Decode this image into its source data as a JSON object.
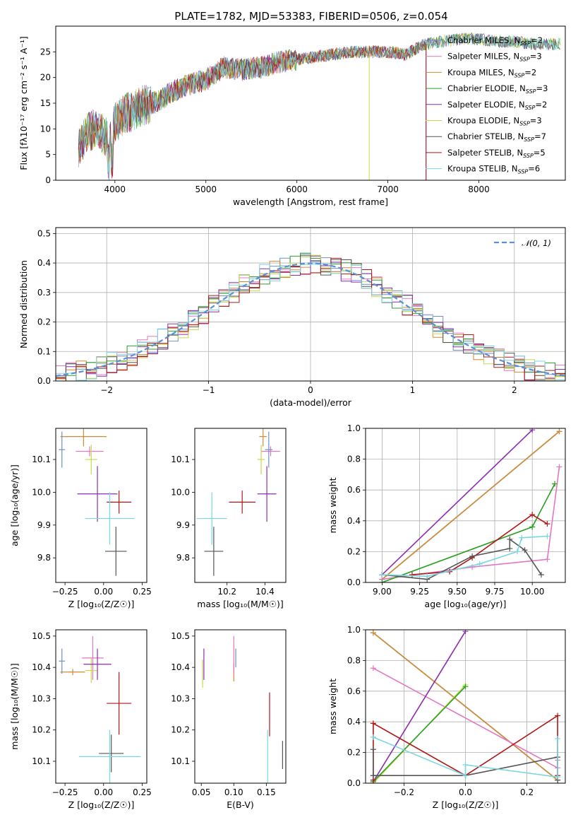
{
  "title": "PLATE=1782, MJD=53383, FIBERID=0506, z=0.054",
  "colors": {
    "Chabrier MILES": "#6f8fc8",
    "Salpeter MILES": "#e377c2",
    "Kroupa MILES": "#d08a30",
    "Chabrier ELODIE": "#2ca02c",
    "Salpeter ELODIE": "#8e2db0",
    "Kroupa ELODIE": "#c8d84a",
    "Chabrier STELIB": "#555555",
    "Salpeter STELIB": "#b01818",
    "Kroupa STELIB": "#7ad6e0",
    "gauss": "#5b8fd6"
  },
  "legend_spectrum": [
    {
      "name": "Chabrier MILES",
      "n": "2"
    },
    {
      "name": "Salpeter MILES",
      "n": "3"
    },
    {
      "name": "Kroupa MILES",
      "n": "2"
    },
    {
      "name": "Chabrier ELODIE",
      "n": "3"
    },
    {
      "name": "Salpeter ELODIE",
      "n": "2"
    },
    {
      "name": "Kroupa ELODIE",
      "n": "3"
    },
    {
      "name": "Chabrier STELIB",
      "n": "7"
    },
    {
      "name": "Salpeter STELIB",
      "n": "5"
    },
    {
      "name": "Kroupa STELIB",
      "n": "6"
    }
  ],
  "chart_data": [
    {
      "id": "spectrum",
      "type": "line",
      "xlabel": "wavelength [Angstrom, rest frame]",
      "ylabel": "Flux [fλ10⁻¹⁷ erg cm⁻² s⁻¹ A⁻¹]",
      "xlim": [
        3350,
        8950
      ],
      "ylim": [
        0,
        30
      ],
      "xticks": [
        "4000",
        "5000",
        "6000",
        "7000",
        "8000"
      ],
      "yticks": [
        "0",
        "5",
        "10",
        "15",
        "20",
        "25"
      ],
      "x": [
        3600,
        3700,
        3800,
        3900,
        3950,
        4000,
        4100,
        4200,
        4300,
        4400,
        4500,
        4600,
        4800,
        5000,
        5200,
        5400,
        5600,
        5800,
        6000,
        6200,
        6400,
        6600,
        6800,
        7000,
        7200,
        7400,
        7600,
        7800,
        8000,
        8200,
        8400,
        8600,
        8800
      ],
      "y": [
        6.5,
        9.5,
        10,
        8.5,
        8,
        11,
        13,
        13.5,
        14.5,
        15,
        15.5,
        17,
        18.5,
        19.5,
        22,
        21.5,
        22,
        23,
        23.5,
        24,
        24.5,
        25,
        25,
        25,
        24.5,
        26.5,
        27,
        27.5,
        27.5,
        27,
        27,
        26.5,
        26.5
      ],
      "series": [
        "Chabrier MILES",
        "Salpeter MILES",
        "Kroupa MILES",
        "Chabrier ELODIE",
        "Salpeter ELODIE",
        "Kroupa ELODIE",
        "Chabrier STELIB",
        "Salpeter STELIB",
        "Kroupa STELIB"
      ],
      "legend": "top-right"
    },
    {
      "id": "residuals",
      "type": "line",
      "xlabel": "(data-model)/error",
      "ylabel": "Normed distribution",
      "xlim": [
        -2.5,
        2.5
      ],
      "ylim": [
        0,
        0.52
      ],
      "xticks": [
        "−2",
        "−1",
        "0",
        "1",
        "2"
      ],
      "yticks": [
        "0.0",
        "0.1",
        "0.2",
        "0.3",
        "0.4",
        "0.5"
      ],
      "legend_label": "𝒩(0, 1)",
      "legend": "top-right",
      "grid": true,
      "hist_edges": [
        -2.5,
        -2.4,
        -2.3,
        -2.2,
        -2.1,
        -2.0,
        -1.9,
        -1.8,
        -1.7,
        -1.6,
        -1.5,
        -1.4,
        -1.3,
        -1.2,
        -1.1,
        -1.0,
        -0.9,
        -0.8,
        -0.7,
        -0.6,
        -0.5,
        -0.4,
        -0.3,
        -0.2,
        -0.1,
        0.0,
        0.1,
        0.2,
        0.3,
        0.4,
        0.5,
        0.6,
        0.7,
        0.8,
        0.9,
        1.0,
        1.1,
        1.2,
        1.3,
        1.4,
        1.5,
        1.6,
        1.7,
        1.8,
        1.9,
        2.0,
        2.1,
        2.2,
        2.3,
        2.4,
        2.5
      ]
    },
    {
      "id": "age-vs-Z",
      "type": "scatter",
      "xlabel": "Z [log₁₀(Z/Z☉)]",
      "ylabel": "age  [log₁₀(age/yr)]",
      "xlim": [
        -0.31,
        0.28
      ],
      "ylim": [
        9.725,
        10.195
      ],
      "xticks": [
        "−0.25",
        "0.00",
        "0.25"
      ],
      "yticks": [
        "9.8",
        "9.9",
        "10.0",
        "10.1"
      ],
      "points": [
        {
          "series": "Kroupa MILES",
          "x": -0.13,
          "xerr": 0.15,
          "y": 10.17,
          "yerr": 0.03
        },
        {
          "series": "Salpeter MILES",
          "x": -0.09,
          "xerr": 0.09,
          "y": 10.125,
          "yerr": 0.015
        },
        {
          "series": "Chabrier MILES",
          "x": -0.27,
          "xerr": 0.02,
          "y": 10.13,
          "yerr": 0.055
        },
        {
          "series": "Kroupa ELODIE",
          "x": -0.08,
          "xerr": 0.04,
          "y": 10.1,
          "yerr": 0.045
        },
        {
          "series": "Salpeter ELODIE",
          "x": -0.04,
          "xerr": 0.13,
          "y": 9.995,
          "yerr": 0.085
        },
        {
          "series": "Salpeter STELIB",
          "x": 0.1,
          "xerr": 0.08,
          "y": 9.97,
          "yerr": 0.035
        },
        {
          "series": "Kroupa STELIB",
          "x": 0.04,
          "xerr": 0.16,
          "y": 9.92,
          "yerr": 0.08
        },
        {
          "series": "Chabrier STELIB",
          "x": 0.08,
          "xerr": 0.07,
          "y": 9.82,
          "yerr": 0.075
        }
      ]
    },
    {
      "id": "age-vs-mass",
      "type": "scatter",
      "xlabel": "mass [log₁₀(M/M☉)]",
      "ylabel": "",
      "xlim": [
        10.03,
        10.51
      ],
      "ylim": [
        9.725,
        10.195
      ],
      "xticks": [
        "10.2",
        "10.4"
      ],
      "yticks": [
        "9.8",
        "9.9",
        "10.0",
        "10.1"
      ],
      "points": [
        {
          "series": "Kroupa MILES",
          "x": 10.39,
          "xerr": 0.02,
          "y": 10.17,
          "yerr": 0.03
        },
        {
          "series": "Salpeter MILES",
          "x": 10.43,
          "xerr": 0.05,
          "y": 10.125,
          "yerr": 0.015
        },
        {
          "series": "Chabrier MILES",
          "x": 10.42,
          "xerr": 0.02,
          "y": 10.13,
          "yerr": 0.055
        },
        {
          "series": "Kroupa ELODIE",
          "x": 10.38,
          "xerr": 0.02,
          "y": 10.1,
          "yerr": 0.045
        },
        {
          "series": "Salpeter ELODIE",
          "x": 10.41,
          "xerr": 0.05,
          "y": 9.995,
          "yerr": 0.085
        },
        {
          "series": "Salpeter STELIB",
          "x": 10.28,
          "xerr": 0.07,
          "y": 9.97,
          "yerr": 0.035
        },
        {
          "series": "Kroupa STELIB",
          "x": 10.12,
          "xerr": 0.08,
          "y": 9.92,
          "yerr": 0.08
        },
        {
          "series": "Chabrier STELIB",
          "x": 10.13,
          "xerr": 0.05,
          "y": 9.82,
          "yerr": 0.075
        }
      ]
    },
    {
      "id": "weight-vs-age",
      "type": "line",
      "xlabel": "age  [log₁₀(age/yr)]",
      "ylabel": "mass weight",
      "xlim": [
        8.89,
        10.22
      ],
      "ylim": [
        0,
        1
      ],
      "xticks": [
        "9.00",
        "9.25",
        "9.50",
        "9.75",
        "10.00"
      ],
      "yticks": [
        "0.0",
        "0.2",
        "0.4",
        "0.6",
        "0.8",
        "1.0"
      ],
      "grid": true,
      "series": [
        {
          "name": "Salpeter ELODIE",
          "x": [
            9.0,
            10.0
          ],
          "y": [
            0.05,
            0.99
          ]
        },
        {
          "name": "Chabrier MILES",
          "x": [
            9.0,
            10.18
          ],
          "y": [
            0.02,
            0.98
          ]
        },
        {
          "name": "Kroupa MILES",
          "x": [
            9.0,
            10.18
          ],
          "y": [
            0.02,
            0.98
          ]
        },
        {
          "name": "Salpeter MILES",
          "x": [
            9.0,
            9.6,
            10.1,
            10.18
          ],
          "y": [
            0.02,
            0.1,
            0.15,
            0.75
          ]
        },
        {
          "name": "Kroupa ELODIE",
          "x": [
            9.0,
            10.0,
            10.15
          ],
          "y": [
            0.0,
            0.36,
            0.64
          ]
        },
        {
          "name": "Chabrier ELODIE",
          "x": [
            9.0,
            10.0,
            10.15
          ],
          "y": [
            0.0,
            0.36,
            0.64
          ]
        },
        {
          "name": "Salpeter STELIB",
          "x": [
            9.2,
            9.45,
            9.6,
            10.0,
            10.1
          ],
          "y": [
            0.05,
            0.07,
            0.16,
            0.44,
            0.38
          ]
        },
        {
          "name": "Chabrier STELIB",
          "x": [
            9.0,
            9.3,
            9.6,
            9.85,
            9.85,
            9.95,
            10.06
          ],
          "y": [
            0.05,
            0.02,
            0.17,
            0.22,
            0.28,
            0.21,
            0.05
          ]
        },
        {
          "name": "Kroupa STELIB",
          "x": [
            9.0,
            9.3,
            9.65,
            9.9,
            9.93,
            10.1
          ],
          "y": [
            0.05,
            0.04,
            0.12,
            0.2,
            0.29,
            0.3
          ]
        }
      ]
    },
    {
      "id": "mass-vs-Z",
      "type": "scatter",
      "xlabel": "Z [log₁₀(Z/Z☉)]",
      "ylabel": "mass [log₁₀(M/M☉)]",
      "xlim": [
        -0.31,
        0.28
      ],
      "ylim": [
        10.03,
        10.52
      ],
      "xticks": [
        "−0.25",
        "0.00",
        "0.25"
      ],
      "yticks": [
        "10.1",
        "10.2",
        "10.3",
        "10.4",
        "10.5"
      ],
      "points": [
        {
          "series": "Kroupa MILES",
          "x": -0.2,
          "xerr": 0.08,
          "y": 10.385,
          "yerr": 0.01
        },
        {
          "series": "Chabrier MILES",
          "x": -0.27,
          "xerr": 0.02,
          "y": 10.42,
          "yerr": 0.04
        },
        {
          "series": "Salpeter MILES",
          "x": -0.07,
          "xerr": 0.07,
          "y": 10.43,
          "yerr": 0.07
        },
        {
          "series": "Kroupa ELODIE",
          "x": -0.08,
          "xerr": 0.04,
          "y": 10.39,
          "yerr": 0.04
        },
        {
          "series": "Salpeter ELODIE",
          "x": -0.04,
          "xerr": 0.09,
          "y": 10.41,
          "yerr": 0.05
        },
        {
          "series": "Salpeter STELIB",
          "x": 0.1,
          "xerr": 0.08,
          "y": 10.285,
          "yerr": 0.1
        },
        {
          "series": "Chabrier STELIB",
          "x": 0.05,
          "xerr": 0.08,
          "y": 10.125,
          "yerr": 0.06
        },
        {
          "series": "Kroupa STELIB",
          "x": 0.04,
          "xerr": 0.2,
          "y": 10.115,
          "yerr": 0.085
        }
      ]
    },
    {
      "id": "mass-vs-EBV",
      "type": "scatter",
      "xlabel": "E(B-V)",
      "ylabel": "",
      "xlim": [
        0.04,
        0.18
      ],
      "ylim": [
        10.03,
        10.52
      ],
      "xticks": [
        "0.05",
        "0.10",
        "0.15"
      ],
      "yticks": [
        "10.1",
        "10.2",
        "10.3",
        "10.4",
        "10.5"
      ],
      "points": [
        {
          "series": "Kroupa MILES",
          "x": 0.1,
          "xerr": 0,
          "y": 10.385,
          "yerr": 0.03
        },
        {
          "series": "Salpeter MILES",
          "x": 0.1,
          "xerr": 0,
          "y": 10.44,
          "yerr": 0.06
        },
        {
          "series": "Chabrier MILES",
          "x": 0.103,
          "xerr": 0,
          "y": 10.43,
          "yerr": 0.03
        },
        {
          "series": "Kroupa ELODIE",
          "x": 0.052,
          "xerr": 0,
          "y": 10.38,
          "yerr": 0.045
        },
        {
          "series": "Salpeter ELODIE",
          "x": 0.054,
          "xerr": 0,
          "y": 10.41,
          "yerr": 0.05
        },
        {
          "series": "Salpeter STELIB",
          "x": 0.155,
          "xerr": 0,
          "y": 10.25,
          "yerr": 0.07
        },
        {
          "series": "Kroupa STELIB",
          "x": 0.152,
          "xerr": 0,
          "y": 10.115,
          "yerr": 0.085
        },
        {
          "series": "Chabrier STELIB",
          "x": 0.175,
          "xerr": 0,
          "y": 10.12,
          "yerr": 0.045
        }
      ]
    },
    {
      "id": "weight-vs-Z",
      "type": "line",
      "xlabel": "Z [log₁₀(Z/Z☉)]",
      "ylabel": "mass weight",
      "xlim": [
        -0.325,
        0.325
      ],
      "ylim": [
        0,
        1
      ],
      "xticks": [
        "−0.2",
        "0.0",
        "0.2"
      ],
      "yticks": [
        "0.0",
        "0.2",
        "0.4",
        "0.6",
        "0.8",
        "1.0"
      ],
      "grid": true,
      "series": [
        {
          "name": "Chabrier MILES",
          "x": [
            -0.3,
            0.3
          ],
          "y": [
            0.98,
            0.02
          ]
        },
        {
          "name": "Kroupa MILES",
          "x": [
            -0.3,
            0.3
          ],
          "y": [
            0.98,
            0.02
          ]
        },
        {
          "name": "Salpeter MILES",
          "x": [
            -0.3,
            0.3,
            0.3
          ],
          "y": [
            0.75,
            0.1,
            0.15
          ]
        },
        {
          "name": "Salpeter ELODIE",
          "x": [
            -0.3,
            0.0
          ],
          "y": [
            0.01,
            0.99
          ]
        },
        {
          "name": "Kroupa ELODIE",
          "x": [
            -0.3,
            0.0
          ],
          "y": [
            0.0,
            0.64
          ]
        },
        {
          "name": "Chabrier ELODIE",
          "x": [
            -0.3,
            0.0
          ],
          "y": [
            0.01,
            0.63
          ]
        },
        {
          "name": "Salpeter STELIB",
          "x": [
            -0.3,
            -0.3,
            0.0,
            0.3,
            0.3
          ],
          "y": [
            0.02,
            0.39,
            0.05,
            0.44,
            0.05
          ]
        },
        {
          "name": "Chabrier STELIB",
          "x": [
            -0.3,
            -0.3,
            -0.3,
            0.0,
            0.3,
            0.3
          ],
          "y": [
            0.22,
            0.05,
            0.05,
            0.05,
            0.17,
            0.02
          ]
        },
        {
          "name": "Kroupa STELIB",
          "x": [
            -0.3,
            0.0,
            0.0,
            0.3,
            0.3
          ],
          "y": [
            0.3,
            0.05,
            0.12,
            0.04,
            0.29
          ]
        }
      ]
    }
  ]
}
